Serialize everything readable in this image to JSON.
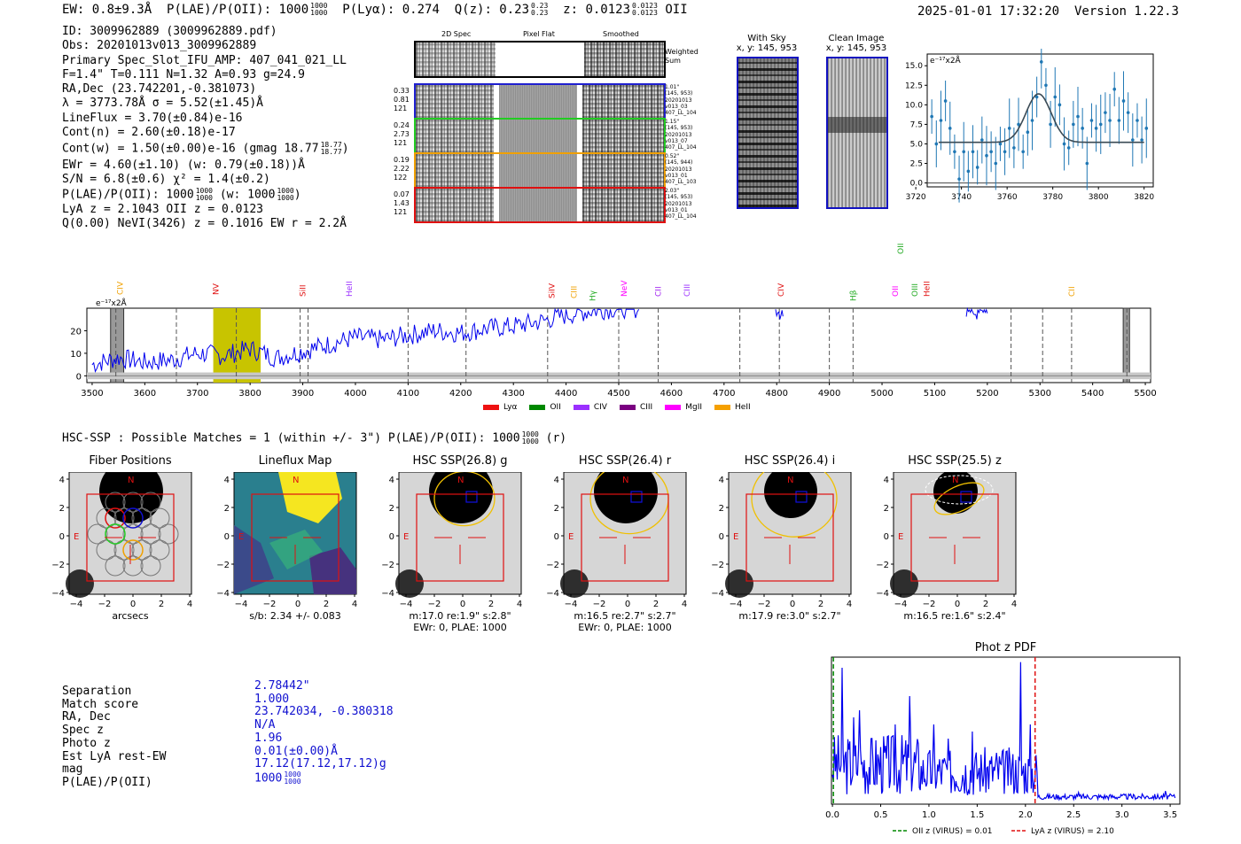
{
  "header": {
    "ew": "EW: 0.8±9.3Å",
    "plae_label": "P(LAE)/P(OII): 1000",
    "plae_hi": "1000",
    "plae_lo": "1000",
    "plya": "P(Lyα): 0.274",
    "qz": "Q(z): 0.23",
    "qz_hi": "0.23",
    "qz_lo": "0.23",
    "z": "z: 0.0123",
    "z_hi": "0.0123",
    "z_lo": "0.0123",
    "z_line": "OII",
    "datetime": "2025-01-01 17:32:20",
    "version": "Version 1.22.3"
  },
  "info": {
    "lines": [
      "ID: 3009962889 (3009962889.pdf)",
      "Obs: 20201013v013_3009962889",
      "Primary Spec_Slot_IFU_AMP: 407_041_021_LL",
      "F=1.4\"  T=0.111  N=1.32  A=0.93  g=24.9",
      "RA,Dec (23.742201,-0.381073)",
      "λ = 3773.78Å  σ = 5.52(±1.45)Å",
      "LineFlux = 3.70(±0.84)e-16",
      "Cont(n) = 2.60(±0.18)e-17"
    ],
    "contw": "Cont(w) = 1.50(±0.00)e-16 (gmag 18.77",
    "contw_hi": "18.77",
    "contw_lo": "18.77",
    "contw_end": ")",
    "ewr": "EWr = 4.60(±1.10) (w: 0.79(±0.18))Å",
    "sn": "S/N = 6.8(±0.6)  χ² = 1.4(±0.2)",
    "plae2": "P(LAE)/P(OII): 1000",
    "plae2_hi": "1000",
    "plae2_lo": "1000",
    "plae2_w": "(w: 1000",
    "plae2_w_hi": "1000",
    "plae2_w_lo": "1000",
    "plae2_end": ")",
    "lyaz": "LyA z = 2.1043  OII z = 0.0123",
    "qline": "Q(0.00) NeVI(3426) z = 0.1016  EW r = 2.2Å"
  },
  "spec2d": {
    "col_titles": [
      "2D Spec",
      "Pixel Flat",
      "Smoothed"
    ],
    "weighted_label": "Weighted\nSum",
    "rows": [
      {
        "left": [
          "0.33",
          "0.81",
          "121"
        ],
        "right": [
          "1.01\"",
          "(145, 953)",
          "20201013",
          "v013_03",
          "407_LL_104"
        ],
        "color": "#1f1fd0"
      },
      {
        "left": [
          "0.24",
          "2.73",
          "121"
        ],
        "right": [
          "1.15\"",
          "(145, 953)",
          "20201013",
          "v013_07",
          "407_LL_104"
        ],
        "color": "#22cc22"
      },
      {
        "left": [
          "0.19",
          "2.22",
          "122"
        ],
        "right": [
          "0.52\"",
          "(145, 944)",
          "20201013",
          "v013_01",
          "407_LL_103"
        ],
        "color": "#f0a000"
      },
      {
        "left": [
          "0.07",
          "1.43",
          "121"
        ],
        "right": [
          "2.03\"",
          "(145, 953)",
          "20201013",
          "v013_01",
          "407_LL_104"
        ],
        "color": "#e01010"
      }
    ]
  },
  "cutouts": {
    "with_sky": "With Sky",
    "with_sky_xy": "x, y: 145, 953",
    "clean": "Clean Image",
    "clean_xy": "x, y: 145, 953"
  },
  "zoom_chart": {
    "ylabel": "e⁻¹⁷x2Å",
    "yticks": [
      "0.0",
      "2.5",
      "5.0",
      "7.5",
      "10.0",
      "12.5",
      "15.0"
    ],
    "xticks": [
      "3720",
      "3740",
      "3760",
      "3780",
      "3800",
      "3820"
    ]
  },
  "full_spec": {
    "ylabel": "e⁻¹⁷x2Å",
    "yticks": [
      "0",
      "10",
      "20"
    ],
    "xticks": [
      "3500",
      "3600",
      "3700",
      "3800",
      "3900",
      "4000",
      "4100",
      "4200",
      "4300",
      "4400",
      "4500",
      "4600",
      "4700",
      "4800",
      "4900",
      "5000",
      "5100",
      "5200",
      "5300",
      "5400",
      "5500"
    ],
    "lines": [
      {
        "name": "CIV",
        "color": "#f0a000"
      },
      {
        "name": "NV",
        "color": "#e01010"
      },
      {
        "name": "SiII",
        "color": "#e01010"
      },
      {
        "name": "HeII",
        "color": "#9b30ff"
      },
      {
        "name": "SiIV",
        "color": "#e01010"
      },
      {
        "name": "CIII",
        "color": "#f0a000"
      },
      {
        "name": "Hγ",
        "color": "#22aa22"
      },
      {
        "name": "NeV",
        "color": "#ff00ff"
      },
      {
        "name": "CII",
        "color": "#a020f0"
      },
      {
        "name": "CIII",
        "color": "#9b30ff"
      },
      {
        "name": "CIV",
        "color": "#e01010"
      },
      {
        "name": "Hβ",
        "color": "#22aa22"
      },
      {
        "name": "OII",
        "color": "#ff00ff"
      },
      {
        "name": "OIII",
        "color": "#22aa22"
      },
      {
        "name": "OIII",
        "color": "#22aa22"
      },
      {
        "name": "HeII",
        "color": "#e01010"
      },
      {
        "name": "CII",
        "color": "#f0a000"
      }
    ],
    "legend": [
      {
        "name": "Lyα",
        "color": "#ee1111"
      },
      {
        "name": "OII",
        "color": "#008800"
      },
      {
        "name": "CIV",
        "color": "#9b30ff"
      },
      {
        "name": "CIII",
        "color": "#7a0080"
      },
      {
        "name": "MgII",
        "color": "#ff00ff"
      },
      {
        "name": "HeII",
        "color": "#f5a000"
      }
    ]
  },
  "hsc": {
    "title": "HSC-SSP : Possible Matches = 1 (within +/- 3\")  P(LAE)/P(OII): 1000",
    "title_hi": "1000",
    "title_lo": "1000",
    "title_end": "(r)",
    "panels": [
      {
        "title": "Fiber Positions",
        "cap1": "arcsecs",
        "cap2": ""
      },
      {
        "title": "Lineflux Map",
        "cap1": "s/b: 2.34 +/- 0.083",
        "cap2": ""
      },
      {
        "title": "HSC SSP(26.8) g",
        "cap1": "m:17.0  re:1.9\"  s:2.8\"",
        "cap2": "EWr: 0, PLAE: 1000"
      },
      {
        "title": "HSC SSP(26.4) r",
        "cap1": "m:16.5  re:2.7\"  s:2.7\"",
        "cap2": "EWr: 0, PLAE: 1000"
      },
      {
        "title": "HSC SSP(26.4) i",
        "cap1": "m:17.9  re:3.0\"  s:2.7\"",
        "cap2": ""
      },
      {
        "title": "HSC SSP(25.5) z",
        "cap1": "m:16.5  re:1.6\"  s:2.4\"",
        "cap2": ""
      }
    ],
    "axis_ticks_y": [
      "4",
      "2",
      "0",
      "−2",
      "−4"
    ],
    "axis_ticks_x": [
      "−4",
      "−2",
      "0",
      "2",
      "4"
    ],
    "n_label": "N",
    "e_label": "E"
  },
  "match": {
    "labels": [
      "Separation",
      "Match score",
      "RA, Dec",
      "Spec z",
      "Photo z",
      "Est LyA rest-EW",
      "mag",
      "P(LAE)/P(OII)"
    ],
    "values": [
      "2.78442\"",
      "1.000",
      "23.742034, -0.380318",
      "N/A",
      "1.96",
      "0.01(±0.00)Å",
      "17.12(17.12,17.12)g",
      "1000"
    ],
    "plae_hi": "1000",
    "plae_lo": "1000"
  },
  "pdf": {
    "title": "Phot z PDF",
    "xticks": [
      "0.0",
      "0.5",
      "1.0",
      "1.5",
      "2.0",
      "2.5",
      "3.0",
      "3.5"
    ],
    "legend_oii": "OII z (VIRUS) = 0.01",
    "legend_lya": "LyA z (VIRUS) = 2.10"
  },
  "chart_data": [
    {
      "type": "scatter",
      "title": "emission line zoom",
      "xlabel": "",
      "ylabel": "e-17 x2Å",
      "xlim": [
        3725,
        3824
      ],
      "ylim": [
        -0.5,
        16.5
      ],
      "points_x": [
        3727,
        3729,
        3731,
        3733,
        3735,
        3737,
        3739,
        3741,
        3743,
        3745,
        3747,
        3749,
        3751,
        3753,
        3755,
        3757,
        3759,
        3761,
        3763,
        3765,
        3767,
        3769,
        3771,
        3773,
        3775,
        3777,
        3779,
        3781,
        3783,
        3785,
        3787,
        3789,
        3791,
        3793,
        3795,
        3797,
        3799,
        3801,
        3803,
        3805,
        3807,
        3809,
        3811,
        3813,
        3815,
        3817,
        3819,
        3821
      ],
      "points_y": [
        8.5,
        5.0,
        8.0,
        10.5,
        7.0,
        4.0,
        0.5,
        4.0,
        1.5,
        4.0,
        2.0,
        5.5,
        3.5,
        4.0,
        2.5,
        5.0,
        4.0,
        7.0,
        4.5,
        7.5,
        4.0,
        6.5,
        8.0,
        11.0,
        15.5,
        12.5,
        7.5,
        11.0,
        10.0,
        5.0,
        4.5,
        7.5,
        8.5,
        7.0,
        2.5,
        8.0,
        7.0,
        7.5,
        9.0,
        8.0,
        12.0,
        8.0,
        10.5,
        9.0,
        5.5,
        8.0,
        5.5,
        7.0
      ],
      "fit": {
        "continuum": 5.2,
        "amplitude": 6.2,
        "center": 3773.78,
        "sigma": 5.52
      }
    },
    {
      "type": "line",
      "title": "full spectrum",
      "xlabel": "wavelength (Å)",
      "ylabel": "e-17 x2Å",
      "xlim": [
        3490,
        5510
      ],
      "ylim": [
        -3,
        30
      ],
      "x": [
        3500,
        3550,
        3600,
        3650,
        3700,
        3750,
        3800,
        3850,
        3900,
        3950,
        4000,
        4050,
        4100,
        4150,
        4200,
        4250,
        4300,
        4350,
        4400,
        4450,
        4500
      ],
      "y": [
        5,
        8,
        6,
        7,
        10,
        9,
        12,
        8,
        11,
        14,
        17,
        16,
        18,
        20,
        19,
        21,
        22,
        24,
        27,
        29,
        30
      ],
      "highlight_band": [
        3730,
        3820
      ],
      "marker_lines": [
        3545,
        3660,
        3773.78,
        3895,
        3910,
        4100,
        4210,
        4365,
        4500,
        4575,
        4730,
        4805,
        4900,
        4945,
        5245,
        5305,
        5360,
        5465
      ]
    },
    {
      "type": "line",
      "title": "Phot z PDF",
      "xlabel": "z",
      "ylabel": "",
      "xlim": [
        -0.01,
        3.6
      ],
      "ylim": [
        0,
        1
      ],
      "oii_z": 0.01,
      "lya_z": 2.1,
      "peaks_z": [
        0.1,
        0.22,
        0.28,
        0.4,
        0.55,
        0.65,
        0.8,
        1.05,
        1.2,
        1.45,
        1.7,
        1.95,
        2.05,
        2.55,
        3.45
      ],
      "peaks_p": [
        0.95,
        0.6,
        0.65,
        0.45,
        0.4,
        0.55,
        0.75,
        0.55,
        0.45,
        0.5,
        0.35,
        0.99,
        0.55,
        0.07,
        0.08
      ]
    }
  ]
}
